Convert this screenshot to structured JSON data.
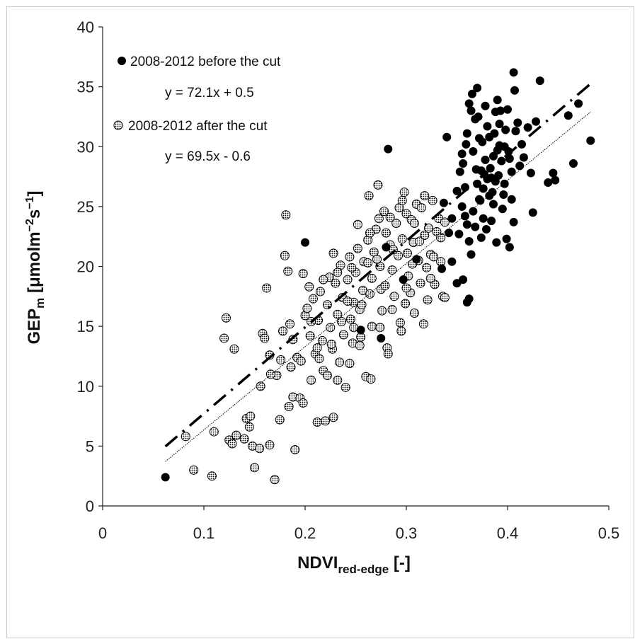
{
  "chart_data": {
    "type": "scatter",
    "xlabel": {
      "main": "NDVI",
      "sub": "red-edge",
      "tail": " [-]"
    },
    "ylabel": {
      "main": "GEP",
      "sub": "m",
      "tail": " [μmolm",
      "sup1": "−2",
      "mid": "s",
      "sup2": "−1",
      "end": "]"
    },
    "xlim": [
      0,
      0.5
    ],
    "ylim": [
      0,
      40
    ],
    "x_ticks": [
      0,
      0.1,
      0.2,
      0.3,
      0.4,
      0.5
    ],
    "x_tick_labels": [
      "0",
      "0.1",
      "0.2",
      "0.3",
      "0.4",
      "0.5"
    ],
    "y_ticks": [
      0,
      5,
      10,
      15,
      20,
      25,
      30,
      35,
      40
    ],
    "y_tick_labels": [
      "0",
      "5",
      "10",
      "15",
      "20",
      "25",
      "30",
      "35",
      "40"
    ],
    "grid": false,
    "legend_position": "top-left",
    "series": [
      {
        "name": "2008-2012 before the cut",
        "equation": "y = 72.1x + 0.5",
        "marker": "filled-circle",
        "color": "#000000",
        "trend": {
          "slope": 72.1,
          "intercept": 0.5,
          "x_range": [
            0.062,
            0.482
          ],
          "style": "dash-dot"
        },
        "points": [
          [
            0.062,
            2.4
          ],
          [
            0.2,
            22.0
          ],
          [
            0.255,
            14.7
          ],
          [
            0.275,
            14.0
          ],
          [
            0.282,
            29.8
          ],
          [
            0.28,
            21.6
          ],
          [
            0.297,
            18.9
          ],
          [
            0.31,
            20.6
          ],
          [
            0.335,
            19.8
          ],
          [
            0.34,
            30.8
          ],
          [
            0.345,
            20.4
          ],
          [
            0.35,
            18.6
          ],
          [
            0.356,
            18.9
          ],
          [
            0.36,
            17.0
          ],
          [
            0.362,
            17.3
          ],
          [
            0.337,
            25.3
          ],
          [
            0.345,
            24.0
          ],
          [
            0.35,
            26.3
          ],
          [
            0.353,
            27.9
          ],
          [
            0.356,
            28.6
          ],
          [
            0.358,
            26.6
          ],
          [
            0.36,
            31.1
          ],
          [
            0.362,
            33.6
          ],
          [
            0.364,
            33.0
          ],
          [
            0.366,
            29.6
          ],
          [
            0.368,
            32.3
          ],
          [
            0.37,
            34.9
          ],
          [
            0.372,
            30.7
          ],
          [
            0.374,
            28.0
          ],
          [
            0.376,
            26.5
          ],
          [
            0.378,
            33.4
          ],
          [
            0.38,
            31.7
          ],
          [
            0.382,
            25.9
          ],
          [
            0.384,
            27.4
          ],
          [
            0.386,
            29.2
          ],
          [
            0.388,
            32.9
          ],
          [
            0.39,
            33.9
          ],
          [
            0.392,
            30.1
          ],
          [
            0.394,
            28.8
          ],
          [
            0.396,
            26.0
          ],
          [
            0.398,
            31.4
          ],
          [
            0.4,
            33.1
          ],
          [
            0.402,
            29.0
          ],
          [
            0.404,
            27.9
          ],
          [
            0.406,
            36.2
          ],
          [
            0.407,
            34.7
          ],
          [
            0.41,
            32.0
          ],
          [
            0.412,
            28.4
          ],
          [
            0.414,
            30.2
          ],
          [
            0.416,
            29.1
          ],
          [
            0.42,
            31.6
          ],
          [
            0.423,
            27.8
          ],
          [
            0.425,
            24.5
          ],
          [
            0.428,
            32.1
          ],
          [
            0.432,
            35.5
          ],
          [
            0.44,
            27.0
          ],
          [
            0.445,
            27.8
          ],
          [
            0.447,
            27.2
          ],
          [
            0.46,
            32.6
          ],
          [
            0.465,
            28.6
          ],
          [
            0.47,
            33.6
          ],
          [
            0.482,
            30.5
          ],
          [
            0.352,
            22.7
          ],
          [
            0.355,
            25.0
          ],
          [
            0.358,
            24.2
          ],
          [
            0.36,
            23.5
          ],
          [
            0.362,
            22.1
          ],
          [
            0.364,
            21.0
          ],
          [
            0.366,
            24.6
          ],
          [
            0.368,
            23.3
          ],
          [
            0.37,
            26.9
          ],
          [
            0.372,
            25.6
          ],
          [
            0.374,
            22.4
          ],
          [
            0.376,
            24.0
          ],
          [
            0.378,
            28.9
          ],
          [
            0.38,
            27.3
          ],
          [
            0.382,
            30.8
          ],
          [
            0.384,
            23.8
          ],
          [
            0.386,
            25.2
          ],
          [
            0.388,
            27.1
          ],
          [
            0.39,
            29.7
          ],
          [
            0.392,
            31.9
          ],
          [
            0.395,
            24.8
          ],
          [
            0.397,
            26.9
          ],
          [
            0.399,
            22.3
          ],
          [
            0.402,
            21.6
          ],
          [
            0.404,
            25.6
          ],
          [
            0.406,
            23.7
          ],
          [
            0.408,
            31.3
          ],
          [
            0.365,
            34.4
          ],
          [
            0.371,
            32.5
          ],
          [
            0.375,
            30.4
          ],
          [
            0.383,
            28.2
          ],
          [
            0.387,
            31.1
          ],
          [
            0.393,
            33.0
          ],
          [
            0.355,
            29.4
          ],
          [
            0.359,
            30.2
          ],
          [
            0.369,
            28.1
          ],
          [
            0.377,
            27.7
          ],
          [
            0.385,
            26.2
          ],
          [
            0.391,
            27.6
          ],
          [
            0.397,
            30.0
          ],
          [
            0.401,
            29.6
          ],
          [
            0.373,
            25.5
          ],
          [
            0.379,
            23.1
          ],
          [
            0.389,
            22.0
          ],
          [
            0.342,
            22.8
          ]
        ]
      },
      {
        "name": "2008-2012 after the cut",
        "equation": "y = 69.5x - 0.6",
        "marker": "dotted-circle",
        "color": "#000000",
        "trend": {
          "slope": 69.5,
          "intercept": -0.6,
          "x_range": [
            0.062,
            0.482
          ],
          "style": "thin-dotted"
        },
        "points": [
          [
            0.082,
            5.8
          ],
          [
            0.09,
            3.0
          ],
          [
            0.108,
            2.5
          ],
          [
            0.11,
            6.2
          ],
          [
            0.12,
            14.0
          ],
          [
            0.122,
            15.7
          ],
          [
            0.125,
            5.5
          ],
          [
            0.128,
            5.2
          ],
          [
            0.13,
            13.1
          ],
          [
            0.132,
            5.9
          ],
          [
            0.14,
            5.6
          ],
          [
            0.142,
            7.3
          ],
          [
            0.145,
            6.6
          ],
          [
            0.148,
            5.0
          ],
          [
            0.15,
            3.2
          ],
          [
            0.155,
            4.8
          ],
          [
            0.158,
            14.4
          ],
          [
            0.16,
            14.0
          ],
          [
            0.162,
            18.2
          ],
          [
            0.165,
            12.6
          ],
          [
            0.165,
            5.1
          ],
          [
            0.17,
            2.2
          ],
          [
            0.172,
            10.9
          ],
          [
            0.175,
            7.2
          ],
          [
            0.178,
            14.6
          ],
          [
            0.18,
            20.9
          ],
          [
            0.181,
            24.3
          ],
          [
            0.183,
            19.6
          ],
          [
            0.185,
            15.2
          ],
          [
            0.188,
            13.9
          ],
          [
            0.188,
            9.1
          ],
          [
            0.19,
            4.7
          ],
          [
            0.192,
            12.4
          ],
          [
            0.195,
            9.0
          ],
          [
            0.198,
            19.4
          ],
          [
            0.198,
            8.6
          ],
          [
            0.2,
            15.9
          ],
          [
            0.202,
            16.5
          ],
          [
            0.204,
            18.3
          ],
          [
            0.205,
            14.2
          ],
          [
            0.206,
            10.5
          ],
          [
            0.208,
            17.3
          ],
          [
            0.21,
            12.7
          ],
          [
            0.212,
            7.0
          ],
          [
            0.213,
            15.5
          ],
          [
            0.215,
            17.9
          ],
          [
            0.217,
            13.8
          ],
          [
            0.218,
            11.3
          ],
          [
            0.22,
            7.1
          ],
          [
            0.222,
            16.8
          ],
          [
            0.224,
            19.1
          ],
          [
            0.225,
            14.9
          ],
          [
            0.227,
            13.1
          ],
          [
            0.228,
            7.4
          ],
          [
            0.23,
            18.6
          ],
          [
            0.232,
            16.0
          ],
          [
            0.234,
            12.0
          ],
          [
            0.235,
            20.1
          ],
          [
            0.237,
            17.4
          ],
          [
            0.238,
            14.3
          ],
          [
            0.24,
            9.9
          ],
          [
            0.242,
            18.9
          ],
          [
            0.244,
            20.8
          ],
          [
            0.245,
            15.6
          ],
          [
            0.247,
            13.6
          ],
          [
            0.248,
            17.0
          ],
          [
            0.25,
            19.5
          ],
          [
            0.252,
            21.5
          ],
          [
            0.254,
            16.4
          ],
          [
            0.255,
            14.1
          ],
          [
            0.257,
            18.0
          ],
          [
            0.258,
            20.4
          ],
          [
            0.26,
            10.8
          ],
          [
            0.262,
            22.2
          ],
          [
            0.263,
            25.9
          ],
          [
            0.264,
            17.7
          ],
          [
            0.265,
            10.6
          ],
          [
            0.266,
            19.0
          ],
          [
            0.268,
            21.2
          ],
          [
            0.27,
            23.1
          ],
          [
            0.272,
            26.8
          ],
          [
            0.273,
            24.0
          ],
          [
            0.274,
            20.0
          ],
          [
            0.275,
            18.1
          ],
          [
            0.276,
            16.3
          ],
          [
            0.278,
            24.6
          ],
          [
            0.28,
            22.8
          ],
          [
            0.281,
            13.2
          ],
          [
            0.282,
            12.7
          ],
          [
            0.284,
            21.8
          ],
          [
            0.286,
            19.7
          ],
          [
            0.288,
            17.5
          ],
          [
            0.29,
            23.6
          ],
          [
            0.292,
            20.9
          ],
          [
            0.294,
            15.3
          ],
          [
            0.295,
            14.6
          ],
          [
            0.296,
            22.3
          ],
          [
            0.298,
            26.2
          ],
          [
            0.3,
            24.4
          ],
          [
            0.301,
            21.1
          ],
          [
            0.302,
            19.2
          ],
          [
            0.304,
            17.8
          ],
          [
            0.305,
            23.9
          ],
          [
            0.307,
            22.0
          ],
          [
            0.308,
            16.1
          ],
          [
            0.31,
            25.2
          ],
          [
            0.312,
            20.5
          ],
          [
            0.314,
            18.6
          ],
          [
            0.315,
            24.9
          ],
          [
            0.317,
            15.2
          ],
          [
            0.318,
            22.6
          ],
          [
            0.32,
            19.9
          ],
          [
            0.322,
            23.2
          ],
          [
            0.324,
            21.0
          ],
          [
            0.326,
            25.5
          ],
          [
            0.328,
            18.5
          ],
          [
            0.33,
            22.9
          ],
          [
            0.332,
            24.0
          ],
          [
            0.334,
            20.4
          ],
          [
            0.336,
            17.5
          ],
          [
            0.338,
            23.7
          ],
          [
            0.218,
            18.9
          ],
          [
            0.228,
            21.1
          ],
          [
            0.246,
            19.9
          ],
          [
            0.256,
            16.8
          ],
          [
            0.266,
            15.0
          ],
          [
            0.271,
            20.6
          ],
          [
            0.279,
            18.4
          ],
          [
            0.287,
            21.4
          ],
          [
            0.293,
            24.9
          ],
          [
            0.299,
            16.9
          ],
          [
            0.306,
            20.2
          ],
          [
            0.313,
            22.1
          ],
          [
            0.321,
            17.2
          ],
          [
            0.327,
            20.8
          ],
          [
            0.248,
            14.9
          ],
          [
            0.236,
            15.4
          ],
          [
            0.226,
            13.5
          ],
          [
            0.214,
            12.3
          ],
          [
            0.206,
            15.4
          ],
          [
            0.196,
            12.1
          ],
          [
            0.186,
            11.6
          ],
          [
            0.176,
            12.2
          ],
          [
            0.166,
            11.0
          ],
          [
            0.156,
            10.0
          ],
          [
            0.146,
            7.5
          ],
          [
            0.184,
            8.3
          ],
          [
            0.254,
            13.4
          ],
          [
            0.244,
            11.9
          ],
          [
            0.232,
            10.5
          ],
          [
            0.222,
            10.9
          ],
          [
            0.212,
            13.2
          ],
          [
            0.262,
            20.3
          ],
          [
            0.284,
            24.1
          ],
          [
            0.296,
            25.5
          ],
          [
            0.318,
            25.9
          ],
          [
            0.3,
            18.2
          ],
          [
            0.286,
            16.4
          ],
          [
            0.274,
            14.9
          ],
          [
            0.264,
            22.8
          ],
          [
            0.252,
            23.5
          ],
          [
            0.242,
            17.1
          ],
          [
            0.232,
            19.5
          ],
          [
            0.308,
            23.6
          ],
          [
            0.324,
            19.0
          ],
          [
            0.334,
            22.4
          ],
          [
            0.338,
            17.4
          ]
        ]
      }
    ]
  }
}
